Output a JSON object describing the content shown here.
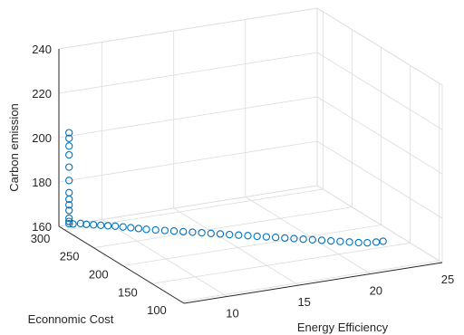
{
  "chart_data": {
    "type": "scatter",
    "projection": "3d",
    "title": "",
    "xlabel": "Energy Efficiency",
    "ylabel": "Econnomic Cost",
    "zlabel": "Carbon emission",
    "xlim": [
      7,
      25
    ],
    "ylim": [
      95,
      310
    ],
    "zlim": [
      160,
      240
    ],
    "xticks": [
      10,
      15,
      20,
      25
    ],
    "yticks": [
      100,
      150,
      200,
      250,
      300
    ],
    "zticks": [
      160,
      180,
      200,
      220,
      240
    ],
    "grid": true,
    "marker": "open-circle",
    "marker_color": "#0072BD",
    "series": [
      {
        "x": [
          7.3,
          7.3,
          7.3,
          7.3,
          7.3,
          7.3,
          7.3,
          7.3,
          7.3,
          7.3,
          7.3,
          7.3,
          7.3,
          7.5,
          7.9,
          8.1,
          8.4,
          8.7,
          9.0,
          9.3,
          9.6,
          9.9,
          10.2,
          10.5,
          10.9,
          11.3,
          11.7,
          12.1,
          12.5,
          12.9,
          13.3,
          13.7,
          14.1,
          14.5,
          14.9,
          15.3,
          15.7,
          16.1,
          16.5,
          16.9,
          17.3,
          17.7,
          18.1,
          18.5,
          18.9,
          19.3,
          19.7,
          20.1,
          20.6,
          21.0
        ],
        "y": [
          300,
          300,
          300,
          300,
          300,
          300,
          300,
          300,
          300,
          300,
          300,
          300,
          300,
          298,
          295,
          290,
          285,
          280,
          275,
          270,
          264,
          258,
          252,
          246,
          240,
          234,
          228,
          222,
          216,
          210,
          204,
          198,
          192,
          186,
          180,
          174,
          168,
          162,
          156,
          150,
          144,
          138,
          132,
          126,
          120,
          114,
          108,
          103,
          100,
          98
        ],
        "z": [
          162.5,
          163.5,
          165,
          168.5,
          171,
          173.5,
          176.5,
          182,
          188,
          193.5,
          197.5,
          201,
          203.5,
          162.5,
          162.8,
          163,
          163.3,
          163.6,
          163.9,
          164.2,
          164.5,
          164.8,
          165.1,
          165.4,
          165.7,
          166,
          166.3,
          166.6,
          166.9,
          167.2,
          167.5,
          167.8,
          168.1,
          168.4,
          168.7,
          169,
          169.3,
          169.6,
          169.9,
          170.2,
          170.5,
          170.8,
          171.1,
          171.4,
          171.7,
          172,
          172.3,
          172.6,
          172.9,
          173.2
        ]
      }
    ]
  }
}
